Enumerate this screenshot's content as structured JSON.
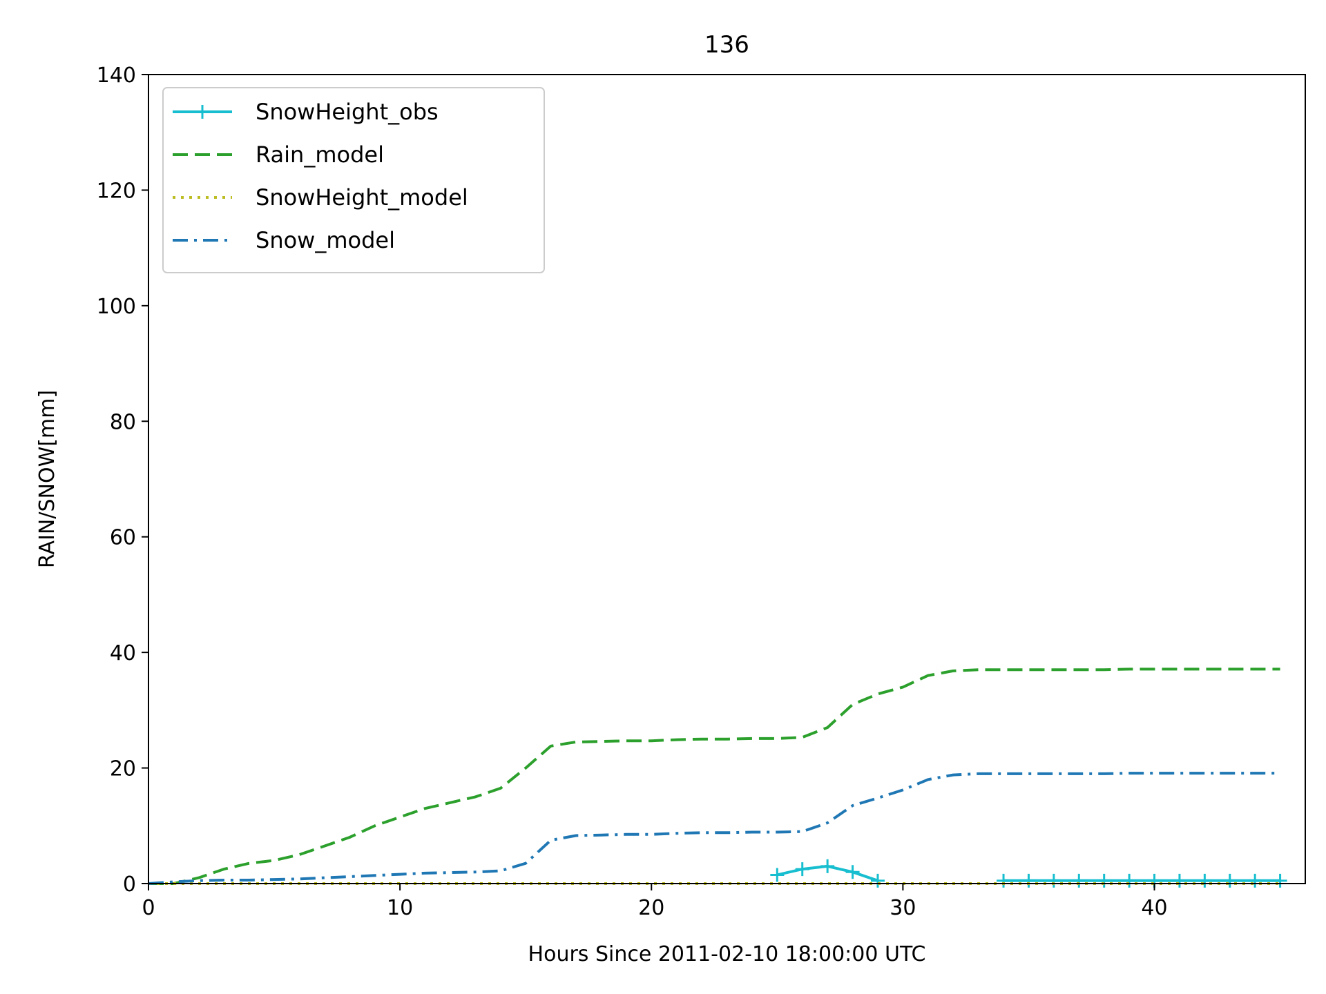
{
  "chart_data": {
    "type": "line",
    "title": "136",
    "xlabel": "Hours Since 2011-02-10 18:00:00 UTC",
    "ylabel": "RAIN/SNOW[mm]",
    "xlim": [
      0,
      46
    ],
    "ylim": [
      0,
      140
    ],
    "xticks": [
      0,
      10,
      20,
      30,
      40
    ],
    "yticks": [
      0,
      20,
      40,
      60,
      80,
      100,
      120,
      140
    ],
    "grid": false,
    "legend_position": "top-left",
    "series": [
      {
        "name": "SnowHeight_obs",
        "color": "#17becf",
        "style": "solid",
        "marker": "plus",
        "segments": [
          {
            "x": [
              25,
              26,
              27,
              28,
              29
            ],
            "y": [
              1.5,
              2.5,
              3,
              2,
              0.5
            ]
          },
          {
            "x": [
              34,
              35,
              36,
              37,
              38,
              39,
              40,
              41,
              42,
              43,
              44,
              45
            ],
            "y": [
              0.5,
              0.5,
              0.5,
              0.5,
              0.5,
              0.5,
              0.5,
              0.5,
              0.5,
              0.5,
              0.5,
              0.5
            ]
          }
        ]
      },
      {
        "name": "Rain_model",
        "color": "#2ca02c",
        "style": "dashed",
        "x": [
          0,
          1,
          2,
          3,
          4,
          5,
          6,
          7,
          8,
          9,
          10,
          11,
          12,
          13,
          14,
          15,
          16,
          17,
          18,
          19,
          20,
          21,
          22,
          23,
          24,
          25,
          26,
          27,
          28,
          29,
          30,
          31,
          32,
          33,
          34,
          35,
          36,
          37,
          38,
          39,
          40,
          41,
          42,
          43,
          44,
          45
        ],
        "y": [
          0,
          0,
          1,
          2.5,
          3.5,
          4,
          5,
          6.5,
          8,
          10,
          11.5,
          13,
          14,
          15,
          16.5,
          20,
          23.8,
          24.5,
          24.6,
          24.7,
          24.7,
          24.9,
          25,
          25,
          25.1,
          25.1,
          25.3,
          27,
          31,
          32.8,
          34,
          36,
          36.8,
          37,
          37,
          37,
          37,
          37,
          37,
          37.1,
          37.1,
          37.1,
          37.1,
          37.1,
          37.1,
          37.1
        ]
      },
      {
        "name": "SnowHeight_model",
        "color": "#bcbd22",
        "style": "dotted",
        "x": [
          0,
          45
        ],
        "y": [
          0,
          0
        ]
      },
      {
        "name": "Snow_model",
        "color": "#1f77b4",
        "style": "dashdot",
        "x": [
          0,
          1,
          2,
          3,
          4,
          5,
          6,
          7,
          8,
          9,
          10,
          11,
          12,
          13,
          14,
          15,
          16,
          17,
          18,
          19,
          20,
          21,
          22,
          23,
          24,
          25,
          26,
          27,
          28,
          29,
          30,
          31,
          32,
          33,
          34,
          35,
          36,
          37,
          38,
          39,
          40,
          41,
          42,
          43,
          44,
          45
        ],
        "y": [
          0,
          0.3,
          0.5,
          0.6,
          0.6,
          0.7,
          0.8,
          1,
          1.2,
          1.4,
          1.6,
          1.8,
          1.9,
          2,
          2.2,
          3.5,
          7.5,
          8.3,
          8.4,
          8.5,
          8.5,
          8.7,
          8.8,
          8.8,
          8.9,
          8.9,
          9,
          10.5,
          13.5,
          14.8,
          16.2,
          18,
          18.8,
          19,
          19,
          19,
          19,
          19,
          19,
          19.1,
          19.1,
          19.1,
          19.1,
          19.1,
          19.1,
          19.1
        ]
      }
    ]
  }
}
